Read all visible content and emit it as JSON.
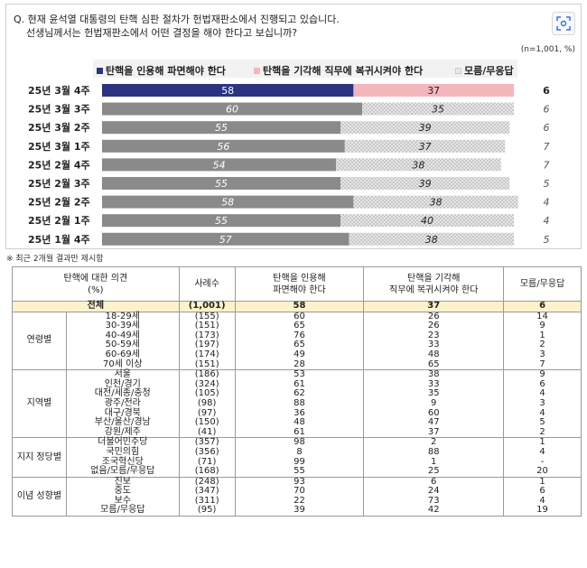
{
  "question": {
    "line1": "Q. 현재 윤석열 대통령의 탄핵 심판 절차가 헌법재판소에서 진행되고 있습니다.",
    "line2": "선생님께서는 헌법재판소에서 어떤 결정을 해야 한다고 보십니까?"
  },
  "note_n": "(n=1,001, %)",
  "footnote": "※ 최근 2개월 결과만 제시함",
  "colors": {
    "impeach_latest": "#2b3480",
    "reject_latest": "#f4b6bd",
    "impeach_past": "#8a8a8a",
    "reject_past": "#d9d9d9"
  },
  "chart_data": {
    "type": "bar",
    "orientation": "horizontal",
    "stacked": true,
    "categories": [
      "25년 3월 4주",
      "25년 3월 3주",
      "25년 3월 2주",
      "25년 3월 1주",
      "25년 2월 4주",
      "25년 2월 3주",
      "25년 2월 2주",
      "25년 2월 1주",
      "25년 1월 4주"
    ],
    "series": [
      {
        "name": "탄핵을 인용해 파면해야 한다",
        "values": [
          58,
          60,
          55,
          56,
          54,
          55,
          58,
          55,
          57
        ]
      },
      {
        "name": "탄핵을 기각해 직무에 복귀시켜야 한다",
        "values": [
          37,
          35,
          39,
          37,
          38,
          39,
          38,
          40,
          38
        ]
      },
      {
        "name": "모름/무응답",
        "values": [
          6,
          6,
          6,
          7,
          7,
          5,
          4,
          4,
          5
        ]
      }
    ],
    "xlim": [
      0,
      100
    ],
    "legend": "top"
  },
  "table": {
    "headers": {
      "opinion": [
        "탄핵에 대한 의견",
        "(%)"
      ],
      "n": "사례수",
      "impeach": [
        "탄핵을 인용해",
        "파면해야 한다"
      ],
      "reject": [
        "탄핵을 기각해",
        "직무에 복귀시켜야 한다"
      ],
      "dk": "모름/무응답"
    },
    "total": {
      "label": "전체",
      "n": "(1,001)",
      "impeach": "58",
      "reject": "37",
      "dk": "6"
    },
    "groups": [
      {
        "name": "연령별",
        "rows": [
          {
            "label": "18-29세",
            "n": "(155)",
            "impeach": "60",
            "reject": "26",
            "dk": "14"
          },
          {
            "label": "30-39세",
            "n": "(151)",
            "impeach": "65",
            "reject": "26",
            "dk": "9"
          },
          {
            "label": "40-49세",
            "n": "(173)",
            "impeach": "76",
            "reject": "23",
            "dk": "1"
          },
          {
            "label": "50-59세",
            "n": "(197)",
            "impeach": "65",
            "reject": "33",
            "dk": "2"
          },
          {
            "label": "60-69세",
            "n": "(174)",
            "impeach": "49",
            "reject": "48",
            "dk": "3"
          },
          {
            "label": "70세 이상",
            "n": "(151)",
            "impeach": "28",
            "reject": "65",
            "dk": "7"
          }
        ]
      },
      {
        "name": "지역별",
        "rows": [
          {
            "label": "서울",
            "n": "(186)",
            "impeach": "53",
            "reject": "38",
            "dk": "9"
          },
          {
            "label": "인천/경기",
            "n": "(324)",
            "impeach": "61",
            "reject": "33",
            "dk": "6"
          },
          {
            "label": "대전/세종/충청",
            "n": "(105)",
            "impeach": "62",
            "reject": "35",
            "dk": "4"
          },
          {
            "label": "광주/전라",
            "n": "(98)",
            "impeach": "88",
            "reject": "9",
            "dk": "3"
          },
          {
            "label": "대구/경북",
            "n": "(97)",
            "impeach": "36",
            "reject": "60",
            "dk": "4"
          },
          {
            "label": "부산/울산/경남",
            "n": "(150)",
            "impeach": "48",
            "reject": "47",
            "dk": "5"
          },
          {
            "label": "강원/제주",
            "n": "(41)",
            "impeach": "61",
            "reject": "37",
            "dk": "2"
          }
        ]
      },
      {
        "name": "지지 정당별",
        "rows": [
          {
            "label": "더불어민주당",
            "n": "(357)",
            "impeach": "98",
            "reject": "2",
            "dk": "1"
          },
          {
            "label": "국민의힘",
            "n": "(356)",
            "impeach": "8",
            "reject": "88",
            "dk": "4"
          },
          {
            "label": "조국혁신당",
            "n": "(71)",
            "impeach": "99",
            "reject": "1",
            "dk": "-"
          },
          {
            "label": "없음/모름/무응답",
            "n": "(168)",
            "impeach": "55",
            "reject": "25",
            "dk": "20"
          }
        ]
      },
      {
        "name": "이념 성향별",
        "rows": [
          {
            "label": "진보",
            "n": "(248)",
            "impeach": "93",
            "reject": "6",
            "dk": "1"
          },
          {
            "label": "중도",
            "n": "(347)",
            "impeach": "70",
            "reject": "24",
            "dk": "6"
          },
          {
            "label": "보수",
            "n": "(311)",
            "impeach": "22",
            "reject": "73",
            "dk": "4"
          },
          {
            "label": "모름/무응답",
            "n": "(95)",
            "impeach": "39",
            "reject": "42",
            "dk": "19"
          }
        ]
      }
    ]
  }
}
